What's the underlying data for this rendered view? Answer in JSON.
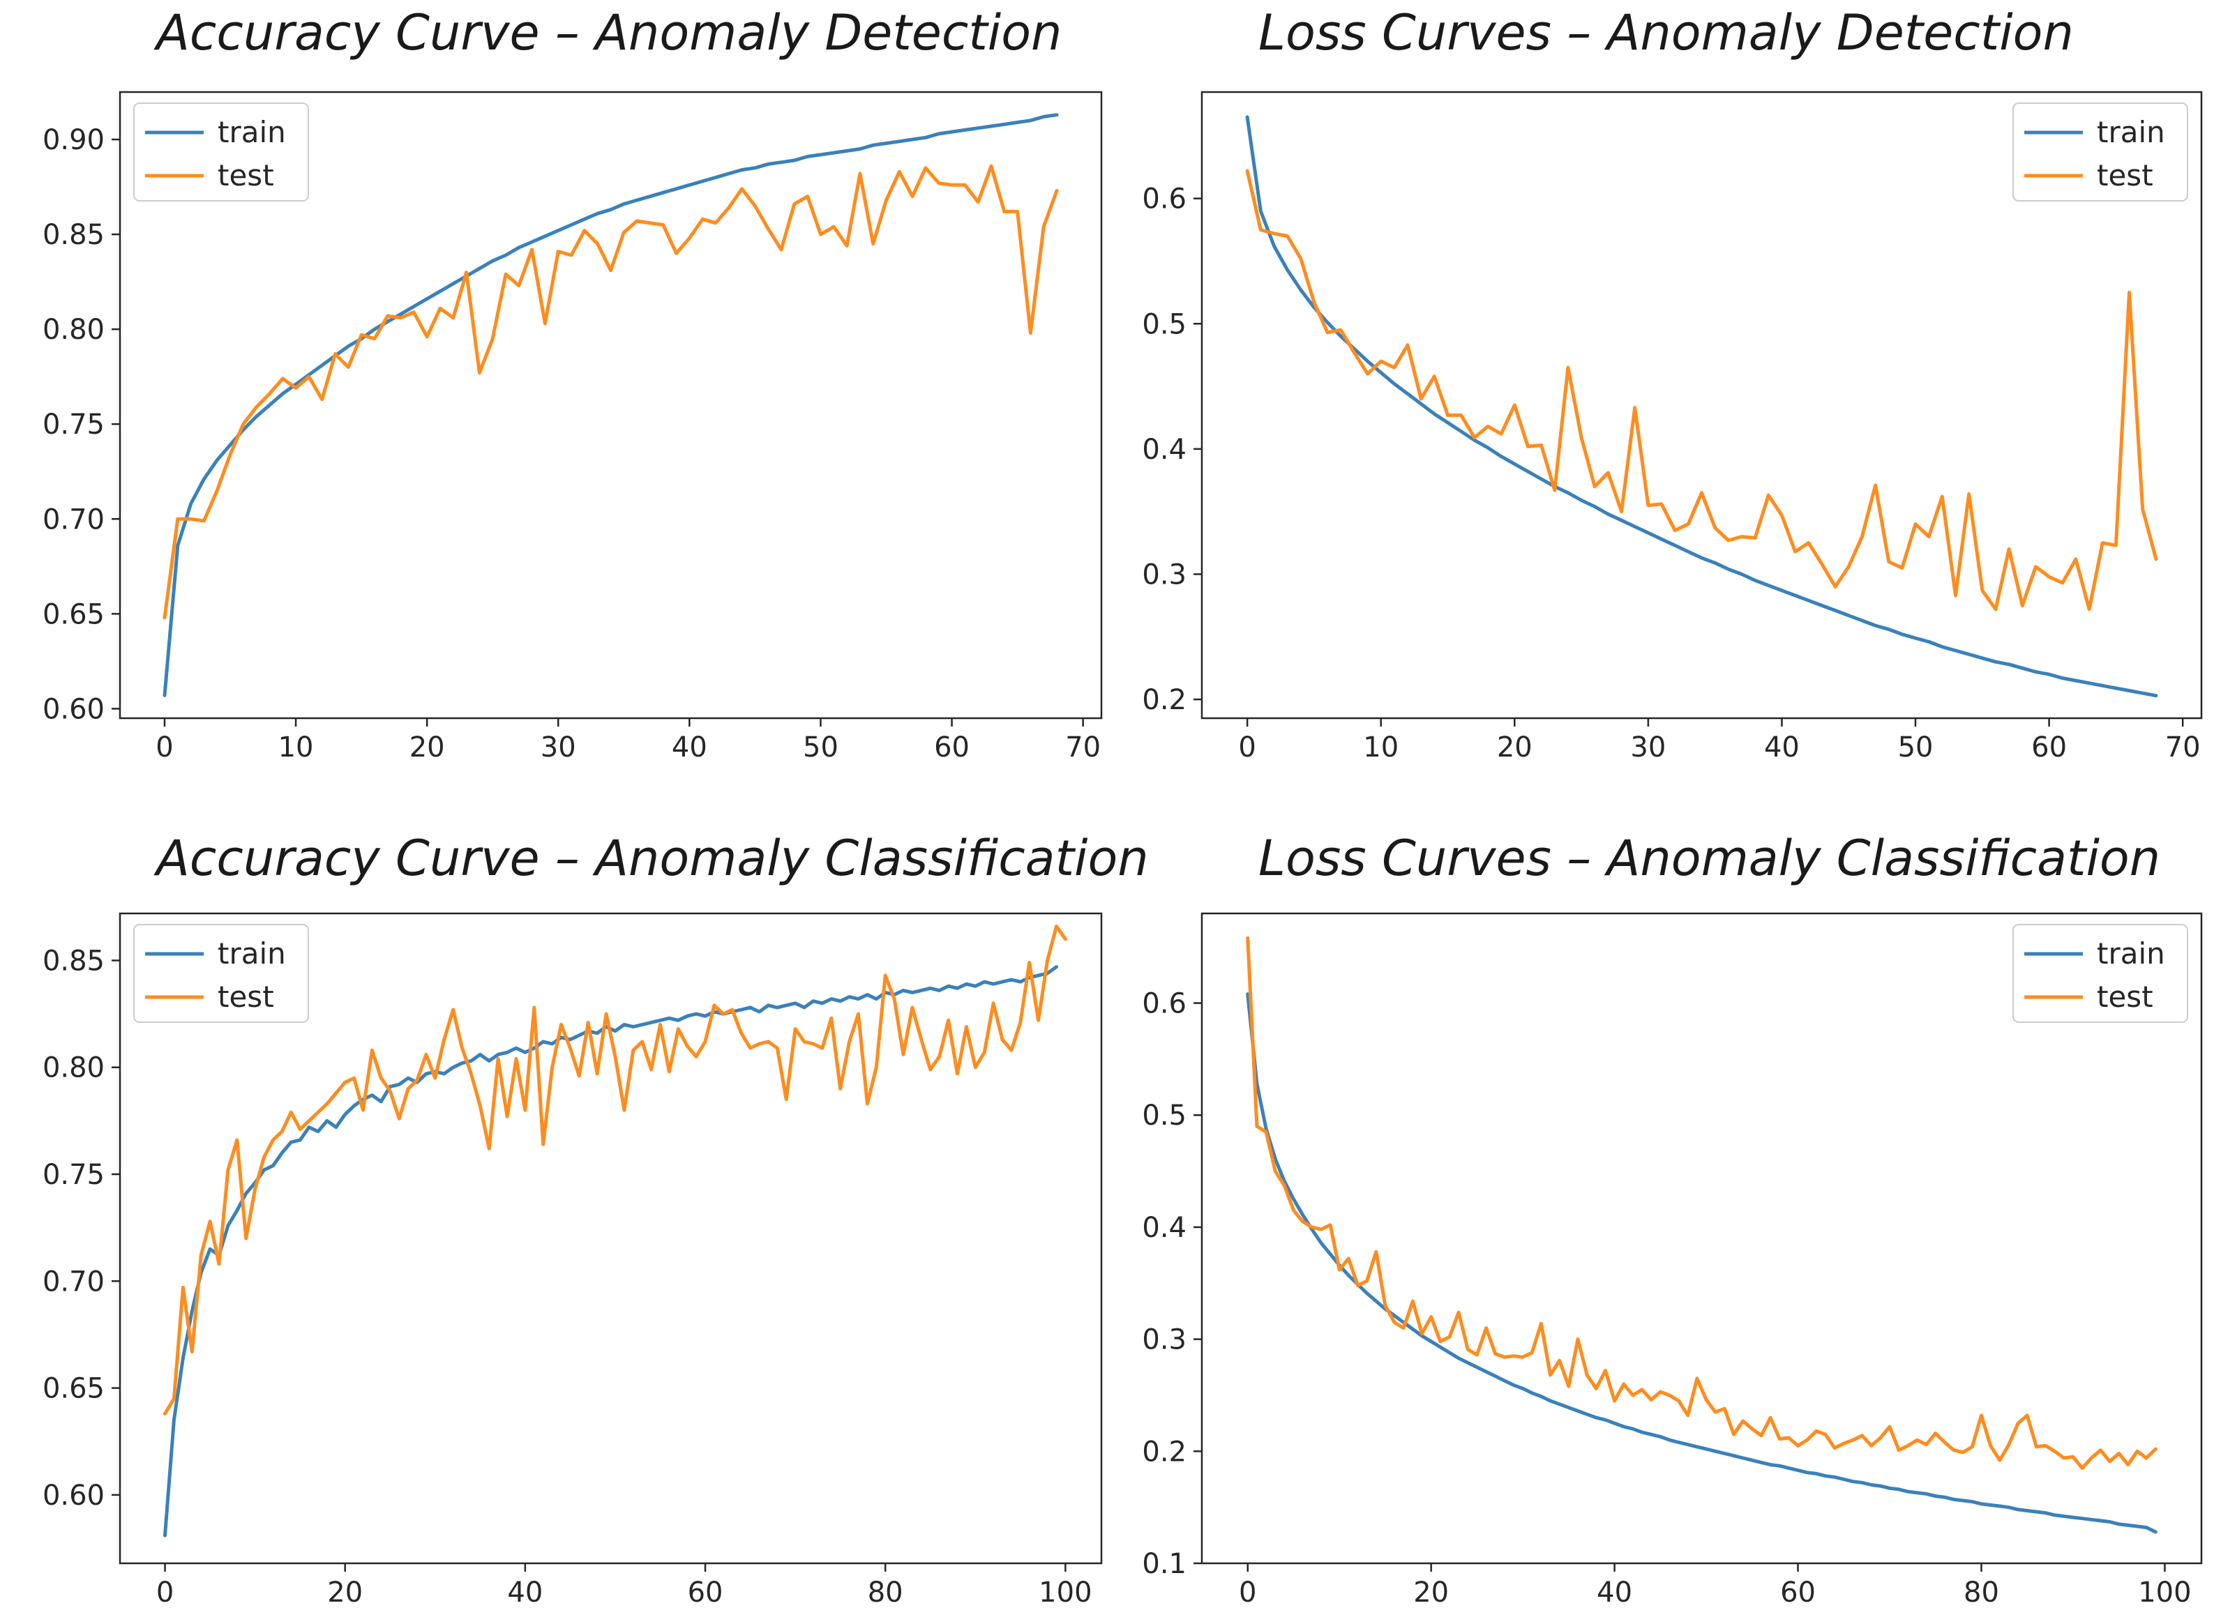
{
  "colors": {
    "train": "#3a81ba",
    "test": "#ff8c1e",
    "axis": "#262626",
    "legend_border": "#cccccc"
  },
  "chart_data": [
    {
      "type": "line",
      "title": "Accuracy Curve – Anomaly Detection",
      "xlabel": "",
      "ylabel": "",
      "xlim": [
        -3.4,
        71.4
      ],
      "ylim": [
        0.595,
        0.925
      ],
      "xticks": [
        0,
        10,
        20,
        30,
        40,
        50,
        60,
        70
      ],
      "xtick_labels": [
        "0",
        "10",
        "20",
        "30",
        "40",
        "50",
        "60",
        "70"
      ],
      "yticks": [
        0.6,
        0.65,
        0.7,
        0.75,
        0.8,
        0.85,
        0.9
      ],
      "ytick_labels": [
        "0.60",
        "0.65",
        "0.70",
        "0.75",
        "0.80",
        "0.85",
        "0.90"
      ],
      "legend": "top-left",
      "series": [
        {
          "name": "train",
          "x_start": 0,
          "x_step": 1,
          "values": [
            0.607,
            0.686,
            0.708,
            0.721,
            0.731,
            0.739,
            0.747,
            0.754,
            0.76,
            0.766,
            0.771,
            0.776,
            0.781,
            0.786,
            0.791,
            0.795,
            0.8,
            0.804,
            0.808,
            0.812,
            0.816,
            0.82,
            0.824,
            0.828,
            0.832,
            0.836,
            0.839,
            0.843,
            0.846,
            0.849,
            0.852,
            0.855,
            0.858,
            0.861,
            0.863,
            0.866,
            0.868,
            0.87,
            0.872,
            0.874,
            0.876,
            0.878,
            0.88,
            0.882,
            0.884,
            0.885,
            0.887,
            0.888,
            0.889,
            0.891,
            0.892,
            0.893,
            0.894,
            0.895,
            0.897,
            0.898,
            0.899,
            0.9,
            0.901,
            0.903,
            0.904,
            0.905,
            0.906,
            0.907,
            0.908,
            0.909,
            0.91,
            0.912,
            0.913
          ]
        },
        {
          "name": "test",
          "x_start": 0,
          "x_step": 1,
          "values": [
            0.648,
            0.7,
            0.7,
            0.699,
            0.715,
            0.734,
            0.75,
            0.759,
            0.766,
            0.774,
            0.769,
            0.775,
            0.763,
            0.787,
            0.78,
            0.797,
            0.795,
            0.807,
            0.806,
            0.809,
            0.796,
            0.811,
            0.806,
            0.83,
            0.777,
            0.795,
            0.829,
            0.823,
            0.842,
            0.803,
            0.841,
            0.839,
            0.852,
            0.845,
            0.831,
            0.851,
            0.857,
            0.856,
            0.855,
            0.84,
            0.848,
            0.858,
            0.856,
            0.864,
            0.874,
            0.865,
            0.853,
            0.842,
            0.866,
            0.87,
            0.85,
            0.854,
            0.844,
            0.882,
            0.845,
            0.868,
            0.883,
            0.87,
            0.885,
            0.877,
            0.876,
            0.876,
            0.867,
            0.886,
            0.862,
            0.862,
            0.798,
            0.854,
            0.873
          ]
        }
      ]
    },
    {
      "type": "line",
      "title": "Loss Curves – Anomaly Detection",
      "xlabel": "",
      "ylabel": "",
      "xlim": [
        -3.4,
        71.4
      ],
      "ylim": [
        0.185,
        0.685
      ],
      "xticks": [
        0,
        10,
        20,
        30,
        40,
        50,
        60,
        70
      ],
      "xtick_labels": [
        "0",
        "10",
        "20",
        "30",
        "40",
        "50",
        "60",
        "70"
      ],
      "yticks": [
        0.2,
        0.3,
        0.4,
        0.5,
        0.6
      ],
      "ytick_labels": [
        "0.2",
        "0.3",
        "0.4",
        "0.5",
        "0.6"
      ],
      "legend": "top-right",
      "series": [
        {
          "name": "train",
          "x_start": 0,
          "x_step": 1,
          "values": [
            0.665,
            0.59,
            0.562,
            0.543,
            0.527,
            0.513,
            0.501,
            0.49,
            0.48,
            0.47,
            0.461,
            0.452,
            0.444,
            0.436,
            0.428,
            0.421,
            0.414,
            0.407,
            0.401,
            0.394,
            0.388,
            0.382,
            0.376,
            0.37,
            0.365,
            0.359,
            0.354,
            0.348,
            0.343,
            0.338,
            0.333,
            0.328,
            0.323,
            0.318,
            0.313,
            0.309,
            0.304,
            0.3,
            0.295,
            0.291,
            0.287,
            0.283,
            0.279,
            0.275,
            0.271,
            0.267,
            0.263,
            0.259,
            0.256,
            0.252,
            0.249,
            0.246,
            0.242,
            0.239,
            0.236,
            0.233,
            0.23,
            0.228,
            0.225,
            0.222,
            0.22,
            0.217,
            0.215,
            0.213,
            0.211,
            0.209,
            0.207,
            0.205,
            0.203
          ]
        },
        {
          "name": "test",
          "x_start": 0,
          "x_step": 1,
          "values": [
            0.622,
            0.575,
            0.572,
            0.57,
            0.552,
            0.517,
            0.493,
            0.495,
            0.477,
            0.46,
            0.47,
            0.465,
            0.483,
            0.44,
            0.458,
            0.427,
            0.427,
            0.409,
            0.418,
            0.412,
            0.435,
            0.402,
            0.403,
            0.367,
            0.465,
            0.409,
            0.37,
            0.381,
            0.35,
            0.433,
            0.355,
            0.356,
            0.335,
            0.34,
            0.365,
            0.337,
            0.327,
            0.33,
            0.329,
            0.363,
            0.347,
            0.318,
            0.325,
            0.308,
            0.29,
            0.306,
            0.33,
            0.371,
            0.31,
            0.305,
            0.34,
            0.33,
            0.362,
            0.283,
            0.364,
            0.287,
            0.272,
            0.32,
            0.275,
            0.306,
            0.298,
            0.293,
            0.312,
            0.272,
            0.325,
            0.323,
            0.525,
            0.352,
            0.312
          ]
        }
      ]
    },
    {
      "type": "line",
      "title": "Accuracy Curve – Anomaly Classification",
      "xlabel": "",
      "ylabel": "",
      "xlim": [
        -5,
        104
      ],
      "ylim": [
        0.568,
        0.872
      ],
      "xticks": [
        0,
        20,
        40,
        60,
        80,
        100
      ],
      "xtick_labels": [
        "0",
        "20",
        "40",
        "60",
        "80",
        "100"
      ],
      "yticks": [
        0.6,
        0.65,
        0.7,
        0.75,
        0.8,
        0.85
      ],
      "ytick_labels": [
        "0.60",
        "0.65",
        "0.70",
        "0.75",
        "0.80",
        "0.85"
      ],
      "legend": "top-left",
      "series": [
        {
          "name": "train",
          "x_start": 0,
          "x_step": 1,
          "values": [
            0.581,
            0.635,
            0.664,
            0.686,
            0.704,
            0.715,
            0.712,
            0.726,
            0.733,
            0.741,
            0.746,
            0.752,
            0.754,
            0.76,
            0.765,
            0.766,
            0.772,
            0.77,
            0.775,
            0.772,
            0.778,
            0.782,
            0.785,
            0.787,
            0.784,
            0.791,
            0.792,
            0.795,
            0.793,
            0.797,
            0.798,
            0.797,
            0.8,
            0.802,
            0.803,
            0.806,
            0.803,
            0.806,
            0.807,
            0.809,
            0.807,
            0.809,
            0.812,
            0.811,
            0.814,
            0.813,
            0.815,
            0.817,
            0.816,
            0.819,
            0.817,
            0.82,
            0.819,
            0.82,
            0.821,
            0.822,
            0.823,
            0.822,
            0.824,
            0.825,
            0.824,
            0.826,
            0.825,
            0.826,
            0.827,
            0.828,
            0.826,
            0.829,
            0.828,
            0.829,
            0.83,
            0.828,
            0.831,
            0.83,
            0.832,
            0.831,
            0.833,
            0.832,
            0.834,
            0.832,
            0.835,
            0.834,
            0.836,
            0.835,
            0.836,
            0.837,
            0.836,
            0.838,
            0.837,
            0.839,
            0.838,
            0.84,
            0.839,
            0.84,
            0.841,
            0.84,
            0.842,
            0.843,
            0.844,
            0.847
          ]
        },
        {
          "name": "test",
          "x_start": 0,
          "x_step": 1,
          "values": [
            0.638,
            0.645,
            0.697,
            0.667,
            0.712,
            0.728,
            0.708,
            0.752,
            0.766,
            0.72,
            0.743,
            0.758,
            0.766,
            0.77,
            0.779,
            0.771,
            0.775,
            0.779,
            0.783,
            0.788,
            0.793,
            0.795,
            0.78,
            0.808,
            0.795,
            0.789,
            0.776,
            0.79,
            0.794,
            0.806,
            0.795,
            0.813,
            0.827,
            0.809,
            0.797,
            0.782,
            0.762,
            0.804,
            0.777,
            0.804,
            0.78,
            0.828,
            0.764,
            0.8,
            0.82,
            0.809,
            0.796,
            0.821,
            0.797,
            0.825,
            0.805,
            0.78,
            0.808,
            0.812,
            0.799,
            0.82,
            0.798,
            0.818,
            0.81,
            0.805,
            0.812,
            0.829,
            0.825,
            0.827,
            0.816,
            0.809,
            0.811,
            0.812,
            0.809,
            0.785,
            0.818,
            0.812,
            0.811,
            0.809,
            0.823,
            0.79,
            0.812,
            0.825,
            0.783,
            0.8,
            0.843,
            0.832,
            0.806,
            0.828,
            0.813,
            0.799,
            0.805,
            0.822,
            0.797,
            0.819,
            0.8,
            0.807,
            0.83,
            0.813,
            0.808,
            0.821,
            0.849,
            0.822,
            0.85,
            0.866,
            0.86
          ]
        }
      ]
    },
    {
      "type": "line",
      "title": "Loss Curves – Anomaly Classification",
      "xlabel": "",
      "ylabel": "",
      "xlim": [
        -5,
        104
      ],
      "ylim": [
        0.1,
        0.68
      ],
      "xticks": [
        0,
        20,
        40,
        60,
        80,
        100
      ],
      "xtick_labels": [
        "0",
        "20",
        "40",
        "60",
        "80",
        "100"
      ],
      "yticks": [
        0.1,
        0.2,
        0.3,
        0.4,
        0.5,
        0.6
      ],
      "ytick_labels": [
        "0.1",
        "0.2",
        "0.3",
        "0.4",
        "0.5",
        "0.6"
      ],
      "legend": "top-right",
      "series": [
        {
          "name": "train",
          "x_start": 0,
          "x_step": 1,
          "values": [
            0.608,
            0.528,
            0.488,
            0.461,
            0.441,
            0.425,
            0.411,
            0.398,
            0.386,
            0.376,
            0.366,
            0.357,
            0.349,
            0.341,
            0.334,
            0.327,
            0.321,
            0.315,
            0.309,
            0.303,
            0.298,
            0.293,
            0.288,
            0.283,
            0.279,
            0.275,
            0.271,
            0.267,
            0.263,
            0.259,
            0.256,
            0.252,
            0.249,
            0.245,
            0.242,
            0.239,
            0.236,
            0.233,
            0.23,
            0.228,
            0.225,
            0.222,
            0.22,
            0.217,
            0.215,
            0.213,
            0.21,
            0.208,
            0.206,
            0.204,
            0.202,
            0.2,
            0.198,
            0.196,
            0.194,
            0.192,
            0.19,
            0.188,
            0.187,
            0.185,
            0.183,
            0.181,
            0.18,
            0.178,
            0.177,
            0.175,
            0.173,
            0.172,
            0.17,
            0.169,
            0.167,
            0.166,
            0.164,
            0.163,
            0.162,
            0.16,
            0.159,
            0.157,
            0.156,
            0.155,
            0.153,
            0.152,
            0.151,
            0.15,
            0.148,
            0.147,
            0.146,
            0.145,
            0.143,
            0.142,
            0.141,
            0.14,
            0.139,
            0.138,
            0.137,
            0.135,
            0.134,
            0.133,
            0.132,
            0.128
          ]
        },
        {
          "name": "test",
          "x_start": 0,
          "x_step": 1,
          "values": [
            0.658,
            0.49,
            0.485,
            0.45,
            0.437,
            0.415,
            0.405,
            0.4,
            0.398,
            0.402,
            0.362,
            0.372,
            0.348,
            0.352,
            0.378,
            0.33,
            0.315,
            0.31,
            0.334,
            0.305,
            0.32,
            0.298,
            0.302,
            0.324,
            0.291,
            0.286,
            0.31,
            0.287,
            0.284,
            0.285,
            0.284,
            0.288,
            0.314,
            0.268,
            0.281,
            0.258,
            0.3,
            0.268,
            0.256,
            0.272,
            0.245,
            0.26,
            0.25,
            0.255,
            0.246,
            0.253,
            0.25,
            0.245,
            0.232,
            0.265,
            0.246,
            0.235,
            0.238,
            0.215,
            0.227,
            0.22,
            0.214,
            0.23,
            0.211,
            0.212,
            0.205,
            0.21,
            0.218,
            0.215,
            0.203,
            0.207,
            0.21,
            0.214,
            0.205,
            0.212,
            0.222,
            0.201,
            0.205,
            0.21,
            0.206,
            0.216,
            0.208,
            0.201,
            0.199,
            0.204,
            0.232,
            0.205,
            0.192,
            0.206,
            0.225,
            0.232,
            0.204,
            0.205,
            0.2,
            0.194,
            0.195,
            0.185,
            0.194,
            0.201,
            0.191,
            0.198,
            0.188,
            0.2,
            0.194,
            0.202
          ]
        }
      ]
    }
  ]
}
